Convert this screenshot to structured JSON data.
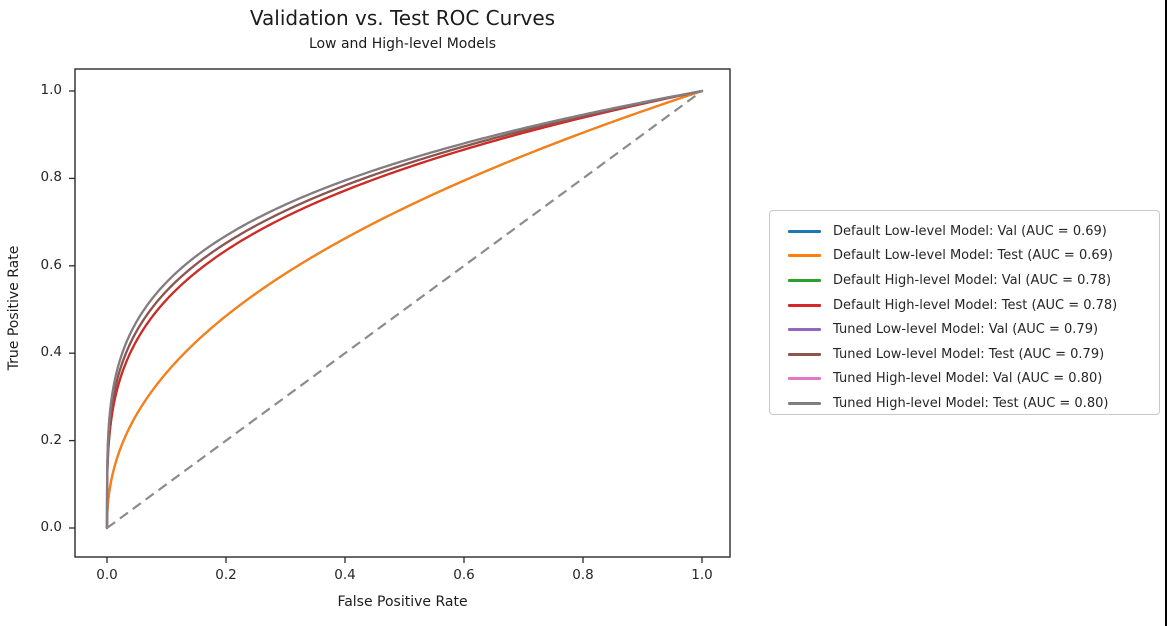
{
  "figure": {
    "title": "Validation vs. Test ROC Curves",
    "subtitle": "Low and High-level Models",
    "xlabel": "False Positive Rate",
    "ylabel": "True Positive Rate",
    "x_ticks": [
      "0.0",
      "0.2",
      "0.4",
      "0.6",
      "0.8",
      "1.0"
    ],
    "y_ticks": [
      "0.0",
      "0.2",
      "0.4",
      "0.6",
      "0.8",
      "1.0"
    ]
  },
  "chart_data": {
    "type": "line",
    "title": "Validation vs. Test ROC Curves",
    "subtitle": "Low and High-level Models",
    "xlabel": "False Positive Rate",
    "ylabel": "True Positive Rate",
    "xlim": [
      -0.05,
      1.05
    ],
    "ylim": [
      -0.05,
      1.05
    ],
    "grid": false,
    "legend_position": "center right, outside axes",
    "description": "Eight ROC curves from (0,0) to (1,1); validation curves are hidden beneath their matching test curves since AUCs are equal; a dashed gray chance diagonal runs from (0,0) to (1,1).",
    "series": [
      {
        "name": "Default Low-level Model: Val",
        "label": "Default Low-level Model: Val (AUC = 0.69)",
        "auc": 0.69,
        "color": "#1f77b4"
      },
      {
        "name": "Default Low-level Model: Test",
        "label": "Default Low-level Model: Test (AUC = 0.69)",
        "auc": 0.69,
        "color": "#ff7f0e"
      },
      {
        "name": "Default High-level Model: Val",
        "label": "Default High-level Model: Val (AUC = 0.78)",
        "auc": 0.78,
        "color": "#2ca02c"
      },
      {
        "name": "Default High-level Model: Test",
        "label": "Default High-level Model: Test (AUC = 0.78)",
        "auc": 0.78,
        "color": "#d62728"
      },
      {
        "name": "Tuned Low-level Model: Val",
        "label": "Tuned Low-level Model: Val (AUC = 0.79)",
        "auc": 0.79,
        "color": "#9467bd"
      },
      {
        "name": "Tuned Low-level Model: Test",
        "label": "Tuned Low-level Model: Test (AUC = 0.79)",
        "auc": 0.79,
        "color": "#8c564b"
      },
      {
        "name": "Tuned High-level Model: Val",
        "label": "Tuned High-level Model: Val (AUC = 0.80)",
        "auc": 0.8,
        "color": "#e377c2"
      },
      {
        "name": "Tuned High-level Model: Test",
        "label": "Tuned High-level Model: Test (AUC = 0.80)",
        "auc": 0.8,
        "color": "#7f7f7f"
      }
    ],
    "diagonal": {
      "name": "chance-line",
      "x": [
        0,
        1
      ],
      "y": [
        0,
        1
      ],
      "style": "dashed",
      "color": "#8c8c8c"
    }
  }
}
